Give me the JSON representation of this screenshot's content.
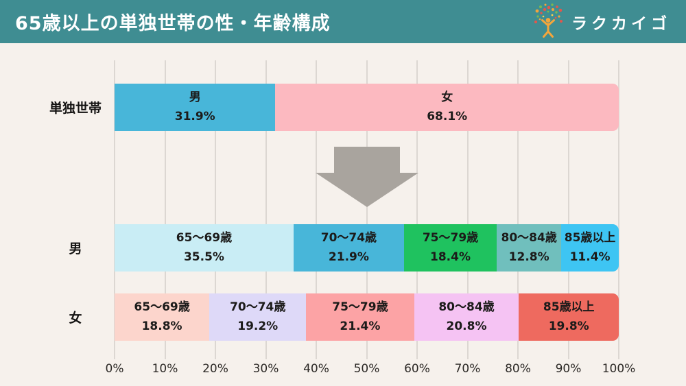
{
  "header": {
    "title": "65歳以上の単独世帯の性・年齢構成",
    "brand": "ラクカイゴ",
    "background_color": "#3f8d92",
    "logo_icon": "person-confetti-icon"
  },
  "page": {
    "background_color": "#f6f1ec",
    "gridline_color": "#dcd7d2"
  },
  "chart_data": {
    "type": "bar",
    "variant": "horizontal-stacked",
    "title": "65歳以上の単独世帯の性・年齢構成",
    "xlabel": "",
    "ylabel": "",
    "xlim": [
      0,
      100
    ],
    "grid": true,
    "x_ticks": [
      "0%",
      "10%",
      "20%",
      "30%",
      "40%",
      "50%",
      "60%",
      "70%",
      "80%",
      "90%",
      "100%"
    ],
    "rows": [
      {
        "label": "単独世帯",
        "segments": [
          {
            "name": "男",
            "value": 31.9,
            "color": "#48b6d9"
          },
          {
            "name": "女",
            "value": 68.1,
            "color": "#fcb9c0"
          }
        ]
      },
      {
        "label": "男",
        "segments": [
          {
            "name": "65〜69歳",
            "value": 35.5,
            "color": "#c9edf5"
          },
          {
            "name": "70〜74歳",
            "value": 21.9,
            "color": "#48b6d9"
          },
          {
            "name": "75〜79歳",
            "value": 18.4,
            "color": "#1fc25f"
          },
          {
            "name": "80〜84歳",
            "value": 12.8,
            "color": "#70bfbd"
          },
          {
            "name": "85歳以上",
            "value": 11.4,
            "color": "#3ec5f3"
          }
        ]
      },
      {
        "label": "女",
        "segments": [
          {
            "name": "65〜69歳",
            "value": 18.8,
            "color": "#fcd5cc"
          },
          {
            "name": "70〜74歳",
            "value": 19.2,
            "color": "#ded9f8"
          },
          {
            "name": "75〜79歳",
            "value": 21.4,
            "color": "#fca3a5"
          },
          {
            "name": "80〜84歳",
            "value": 20.8,
            "color": "#f5c3f3"
          },
          {
            "name": "85歳以上",
            "value": 19.8,
            "color": "#ee6a5f"
          }
        ]
      }
    ],
    "annotation": {
      "type": "down-arrow",
      "color": "#a9a49e"
    }
  }
}
